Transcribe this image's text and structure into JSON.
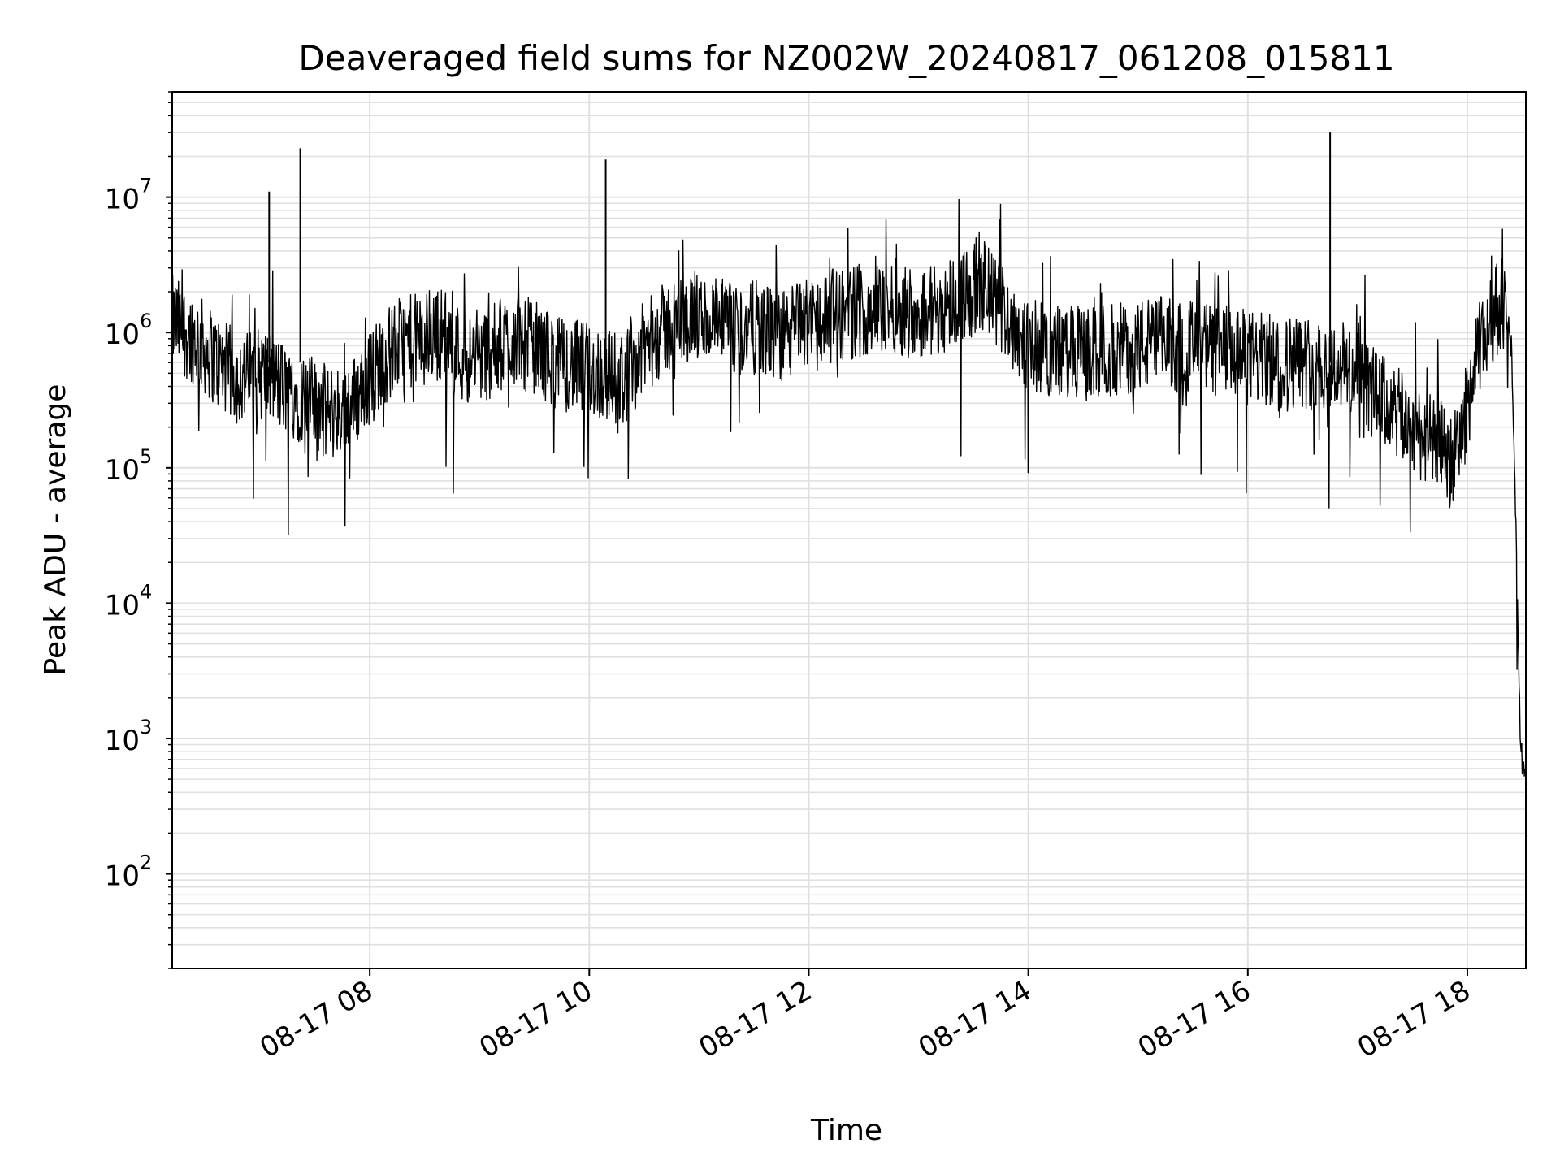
{
  "chart_data": {
    "type": "line",
    "title": "Deaveraged field sums for NZ002W_20240817_061208_015811",
    "xlabel": "Time",
    "ylabel": "Peak ADU - average",
    "yscale": "log",
    "ylim": [
      20,
      60000000
    ],
    "xlim": [
      "2024-08-17 06:12",
      "2024-08-17 18:32"
    ],
    "grid": true,
    "line_color": "#000000",
    "grid_color": "#e0e0e0",
    "x_ticks": [
      "2024-08-17 08:00",
      "2024-08-17 10:00",
      "2024-08-17 12:00",
      "2024-08-17 14:00",
      "2024-08-17 16:00",
      "2024-08-17 18:00"
    ],
    "x_tick_labels": [
      "08-17 08",
      "08-17 10",
      "08-17 12",
      "08-17 14",
      "08-17 16",
      "08-17 18"
    ],
    "y_ticks": [
      100,
      1000,
      10000,
      100000,
      1000000,
      10000000
    ],
    "y_tick_labels": [
      {
        "base": "10",
        "exp": "2"
      },
      {
        "base": "10",
        "exp": "3"
      },
      {
        "base": "10",
        "exp": "4"
      },
      {
        "base": "10",
        "exp": "5"
      },
      {
        "base": "10",
        "exp": "6"
      },
      {
        "base": "10",
        "exp": "7"
      }
    ],
    "series": [
      {
        "x": [
          "2024-08-17 06:12",
          "2024-08-17 06:25",
          "2024-08-17 06:37",
          "2024-08-17 06:49",
          "2024-08-17 07:02",
          "2024-08-17 07:14",
          "2024-08-17 07:26",
          "2024-08-17 07:38",
          "2024-08-17 07:51",
          "2024-08-17 08:03",
          "2024-08-17 08:15",
          "2024-08-17 08:28",
          "2024-08-17 08:40",
          "2024-08-17 08:52",
          "2024-08-17 09:05",
          "2024-08-17 09:17",
          "2024-08-17 09:29",
          "2024-08-17 09:42",
          "2024-08-17 09:54",
          "2024-08-17 10:06",
          "2024-08-17 10:19",
          "2024-08-17 10:31",
          "2024-08-17 10:43",
          "2024-08-17 10:55",
          "2024-08-17 11:08",
          "2024-08-17 11:20",
          "2024-08-17 11:32",
          "2024-08-17 11:45",
          "2024-08-17 11:57",
          "2024-08-17 12:09",
          "2024-08-17 12:22",
          "2024-08-17 12:34",
          "2024-08-17 12:46",
          "2024-08-17 12:59",
          "2024-08-17 13:11",
          "2024-08-17 13:23",
          "2024-08-17 13:36",
          "2024-08-17 13:48",
          "2024-08-17 14:00",
          "2024-08-17 14:13",
          "2024-08-17 14:25",
          "2024-08-17 14:37",
          "2024-08-17 14:49",
          "2024-08-17 15:02",
          "2024-08-17 15:14",
          "2024-08-17 15:26",
          "2024-08-17 15:39",
          "2024-08-17 15:51",
          "2024-08-17 16:03",
          "2024-08-17 16:16",
          "2024-08-17 16:28",
          "2024-08-17 16:40",
          "2024-08-17 16:53",
          "2024-08-17 17:05",
          "2024-08-17 17:17",
          "2024-08-17 17:30",
          "2024-08-17 17:42",
          "2024-08-17 17:54",
          "2024-08-17 18:07",
          "2024-08-17 18:19",
          "2024-08-17 18:24",
          "2024-08-17 18:27",
          "2024-08-17 18:29",
          "2024-08-17 18:31"
        ],
        "y": [
          1200000,
          900000,
          600000,
          450000,
          500000,
          380000,
          320000,
          250000,
          300000,
          550000,
          800000,
          900000,
          1000000,
          650000,
          700000,
          900000,
          800000,
          600000,
          550000,
          500000,
          450000,
          800000,
          1100000,
          1300000,
          1200000,
          1000000,
          1100000,
          900000,
          1200000,
          1300000,
          1400000,
          1500000,
          1600000,
          1400000,
          1500000,
          1900000,
          2100000,
          1400000,
          800000,
          750000,
          700000,
          700000,
          750000,
          800000,
          850000,
          800000,
          750000,
          700000,
          650000,
          600000,
          620000,
          580000,
          560000,
          400000,
          280000,
          200000,
          150000,
          120000,
          800000,
          1800000,
          800000,
          20000,
          1000,
          500
        ],
        "spikes": [
          {
            "x": "2024-08-17 07:05",
            "y": 11000000
          },
          {
            "x": "2024-08-17 07:22",
            "y": 23000000
          },
          {
            "x": "2024-08-17 10:09",
            "y": 19000000
          },
          {
            "x": "2024-08-17 16:45",
            "y": 30000000
          }
        ]
      }
    ]
  }
}
